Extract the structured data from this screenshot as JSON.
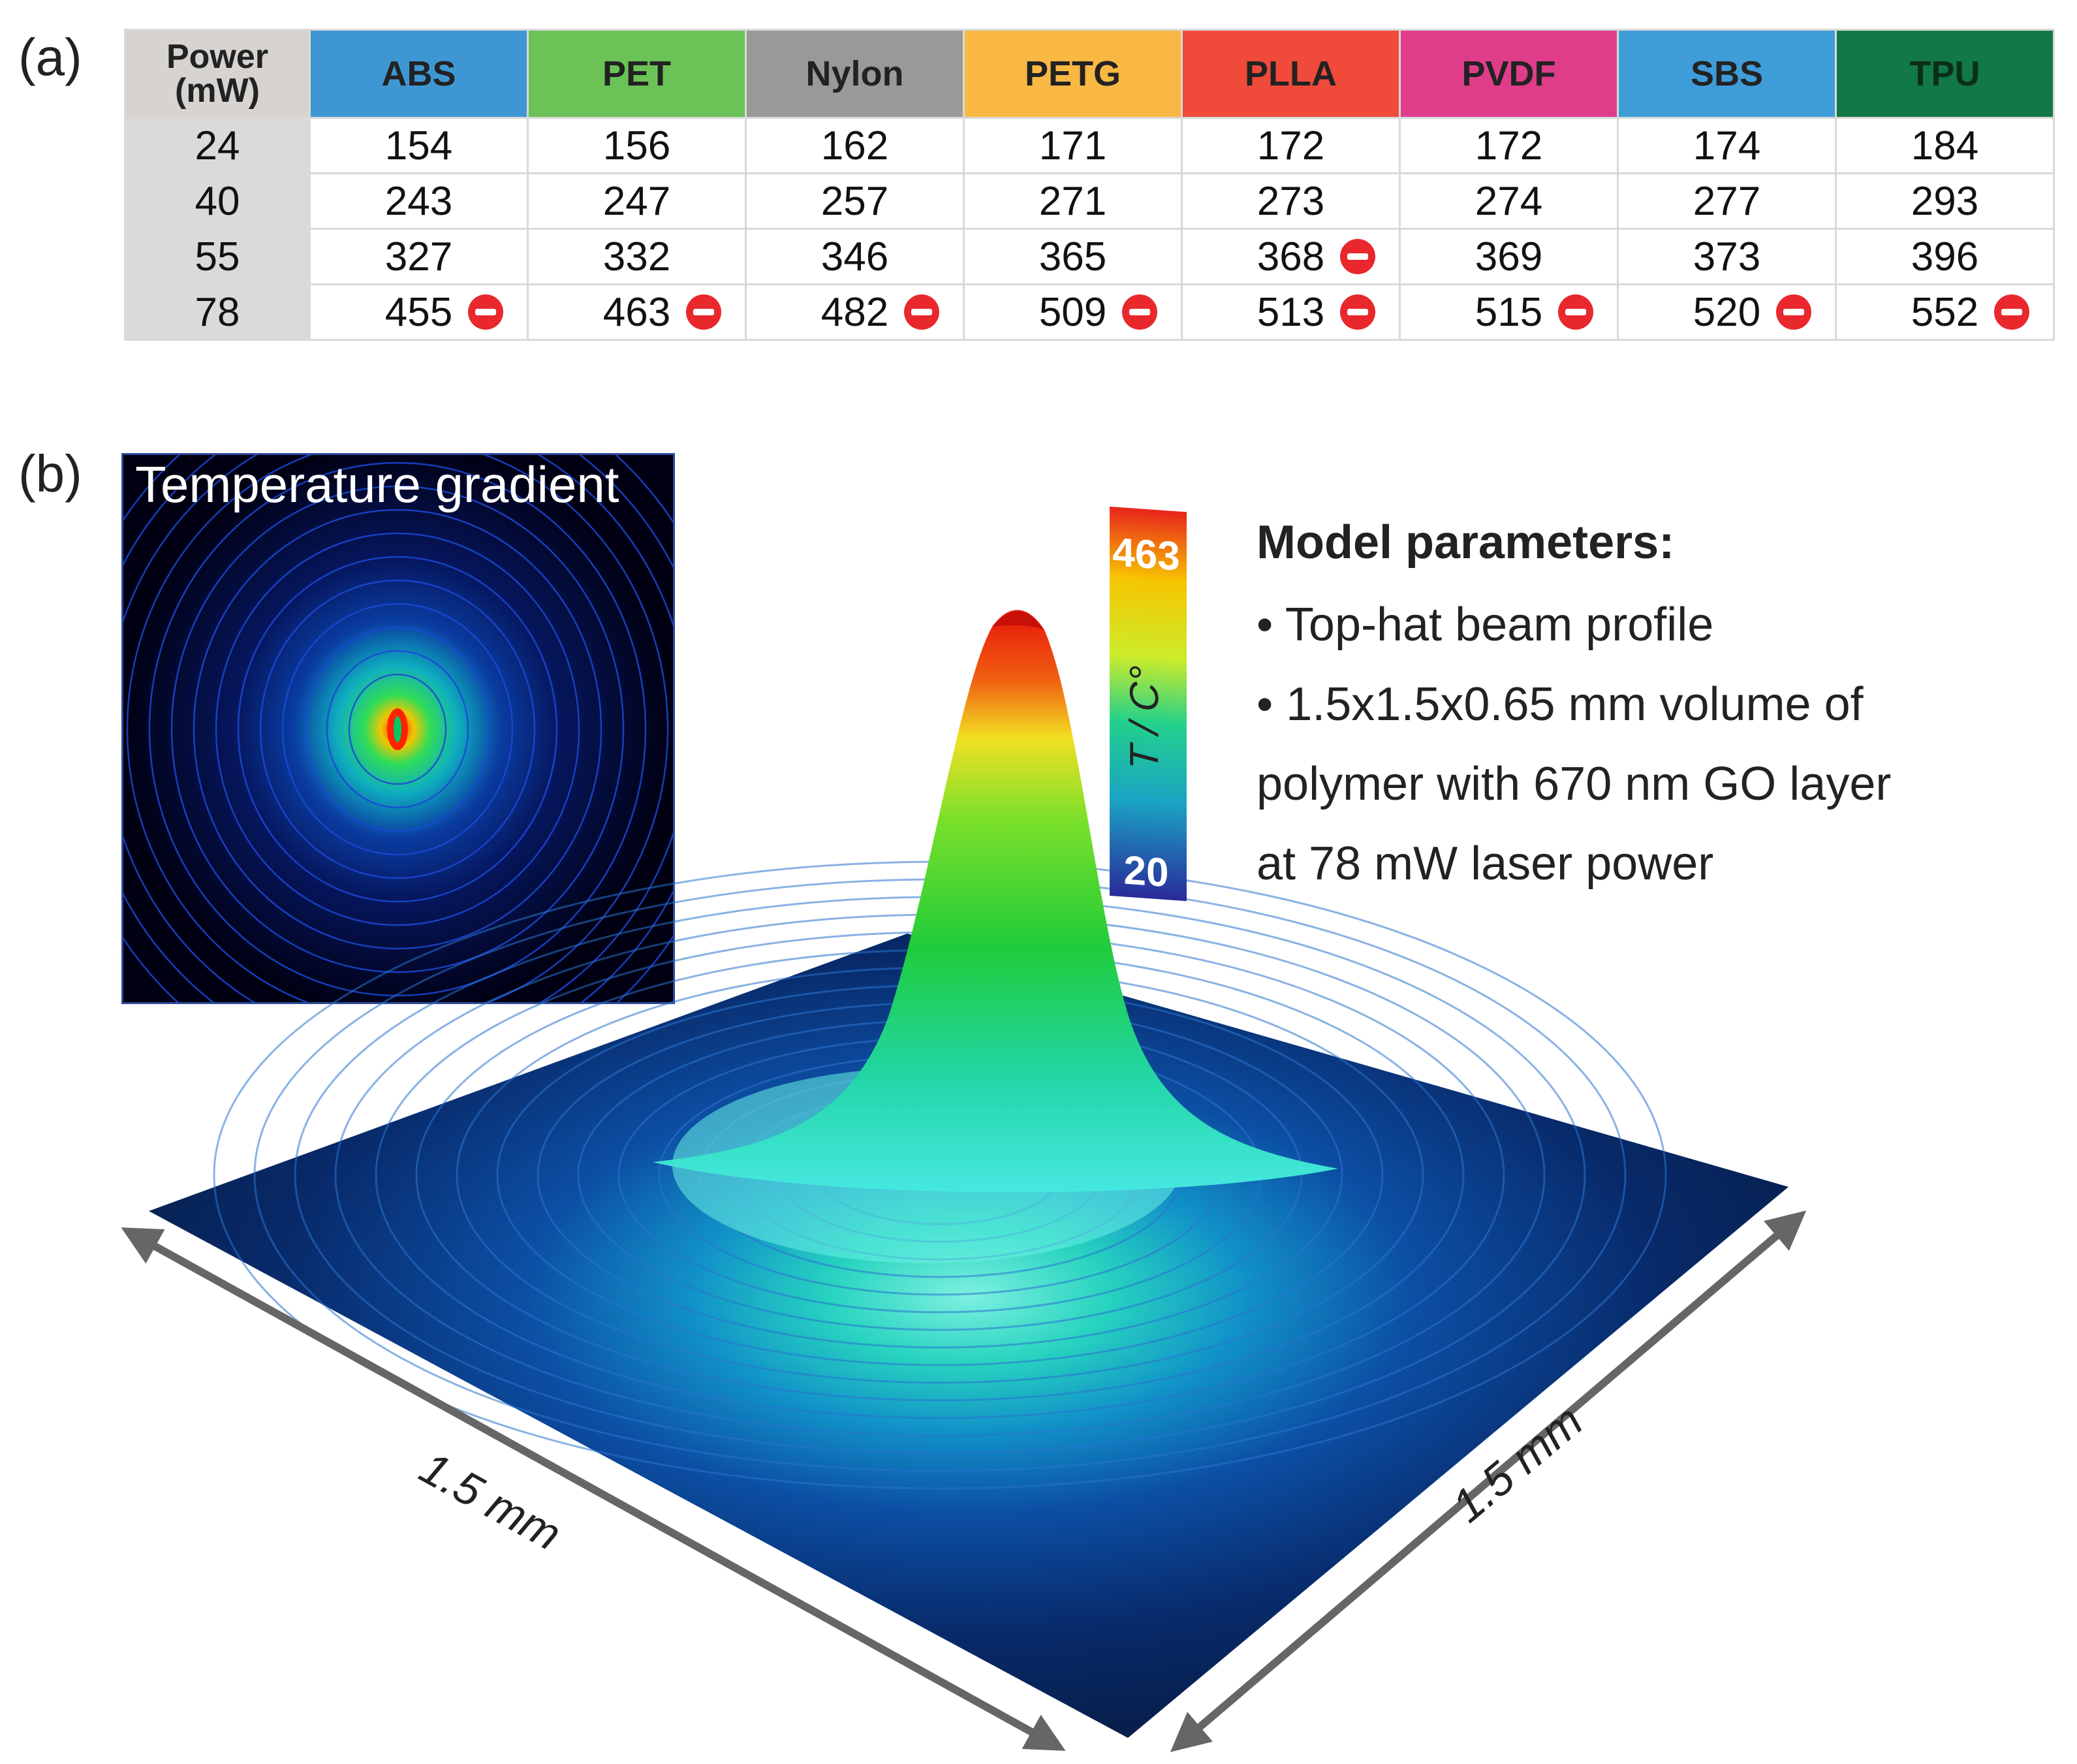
{
  "panel_a": {
    "label": "(a)",
    "header": {
      "power_line1": "Power",
      "power_line2": "(mW)"
    },
    "materials": [
      {
        "name": "ABS",
        "color": "#3e97d3"
      },
      {
        "name": "PET",
        "color": "#6bc256"
      },
      {
        "name": "Nylon",
        "color": "#9b9898"
      },
      {
        "name": "PETG",
        "color": "#f9b844"
      },
      {
        "name": "PLLA",
        "color": "#f04a3a"
      },
      {
        "name": "PVDF",
        "color": "#df3c8a"
      },
      {
        "name": "SBS",
        "color": "#3e9cd8"
      },
      {
        "name": "TPU",
        "color": "#127845"
      }
    ],
    "rows": [
      {
        "power": "24",
        "values": [
          "154",
          "156",
          "162",
          "171",
          "172",
          "172",
          "174",
          "184"
        ],
        "exceeded": [
          false,
          false,
          false,
          false,
          false,
          false,
          false,
          false
        ]
      },
      {
        "power": "40",
        "values": [
          "243",
          "247",
          "257",
          "271",
          "273",
          "274",
          "277",
          "293"
        ],
        "exceeded": [
          false,
          false,
          false,
          false,
          false,
          false,
          false,
          false
        ]
      },
      {
        "power": "55",
        "values": [
          "327",
          "332",
          "346",
          "365",
          "368",
          "369",
          "373",
          "396"
        ],
        "exceeded": [
          false,
          false,
          false,
          false,
          true,
          false,
          false,
          false
        ]
      },
      {
        "power": "78",
        "values": [
          "455",
          "463",
          "482",
          "509",
          "513",
          "515",
          "520",
          "552"
        ],
        "exceeded": [
          true,
          true,
          true,
          true,
          true,
          true,
          true,
          true
        ]
      }
    ],
    "exceeded_icon": "stop-icon",
    "exceeded_color": "#e8282d"
  },
  "panel_b": {
    "label": "(b)",
    "inset_title": "Temperature gradient",
    "colorbar": {
      "max_label": "463",
      "min_label": "20",
      "unit_label": "T / C°"
    },
    "model_parameters": {
      "title": "Model parameters:",
      "lines": [
        "• Top-hat beam profile",
        "• 1.5x1.5x0.65 mm volume of",
        "polymer with 670 nm GO layer",
        "at 78 mW laser power"
      ]
    },
    "axis_left": "1.5 mm",
    "axis_right": "1.5 mm"
  }
}
